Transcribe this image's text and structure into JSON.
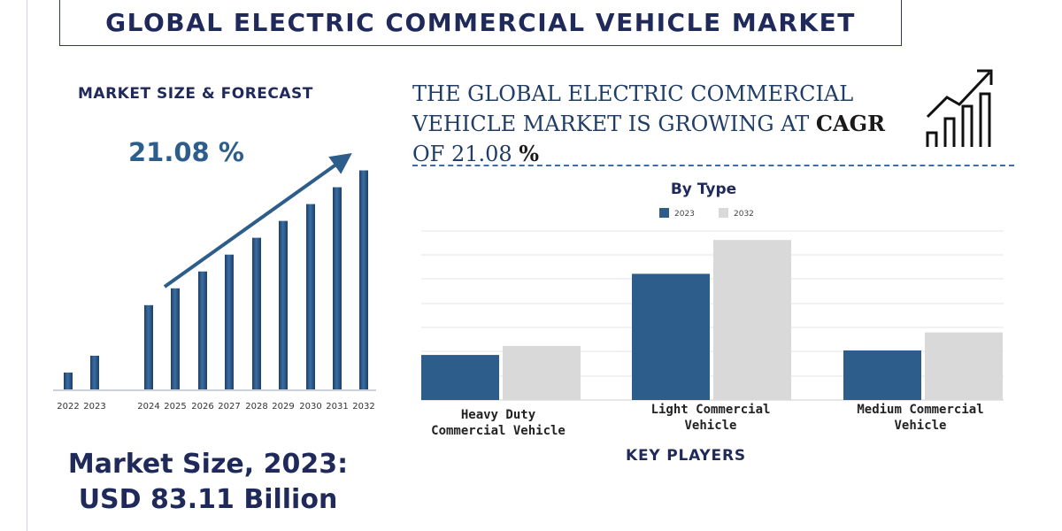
{
  "title": "GLOBAL ELECTRIC COMMERCIAL VEHICLE MARKET",
  "forecast": {
    "section_title": "MARKET SIZE & FORECAST",
    "cagr_label": "21.08 %",
    "market_size_line1": "Market Size, 2023:",
    "market_size_line2": "USD 83.11 Billion"
  },
  "headline": {
    "line1": "THE GLOBAL  ELECTRIC COMMERCIAL",
    "line2_prefix": "VEHICLE MARKET IS GROWING AT ",
    "line2_bold": "CAGR",
    "line3_prefix": "OF  21.08 ",
    "line3_bold": "%"
  },
  "key_players_label": "KEY PLAYERS",
  "icons": {
    "growth": "growth-chart-icon"
  },
  "colors": {
    "bar_blue": "#2d5d8a",
    "bar_grey": "#d9d9d9",
    "navy": "#1f2a5a"
  },
  "chart_data": [
    {
      "type": "bar",
      "title": "",
      "categories": [
        "2022",
        "2023",
        "2024",
        "2025",
        "2026",
        "2027",
        "2028",
        "2029",
        "2030",
        "2031",
        "2032"
      ],
      "values": [
        1,
        2,
        5,
        6,
        7,
        8,
        9,
        10,
        11,
        12,
        13
      ],
      "ylim": [
        0,
        13.5
      ],
      "grid": false,
      "trend_arrow": true
    },
    {
      "type": "bar",
      "title": "By Type",
      "categories": [
        "Heavy Duty Commercial Vehicle",
        "Light Commercial Vehicle",
        "Medium Commercial Vehicle"
      ],
      "category_lines": [
        [
          "Heavy Duty",
          "Commercial Vehicle"
        ],
        [
          "Light Commercial",
          "Vehicle"
        ],
        [
          "Medium Commercial",
          "Vehicle"
        ]
      ],
      "series": [
        {
          "name": "2023",
          "color": "#2d5d8a",
          "values": [
            2,
            5.6,
            2.2
          ]
        },
        {
          "name": "2032",
          "color": "#d9d9d9",
          "values": [
            2.4,
            7.1,
            3.0
          ]
        }
      ],
      "ylim": [
        0,
        7.5
      ],
      "grid": true,
      "legend": "top-center"
    }
  ]
}
